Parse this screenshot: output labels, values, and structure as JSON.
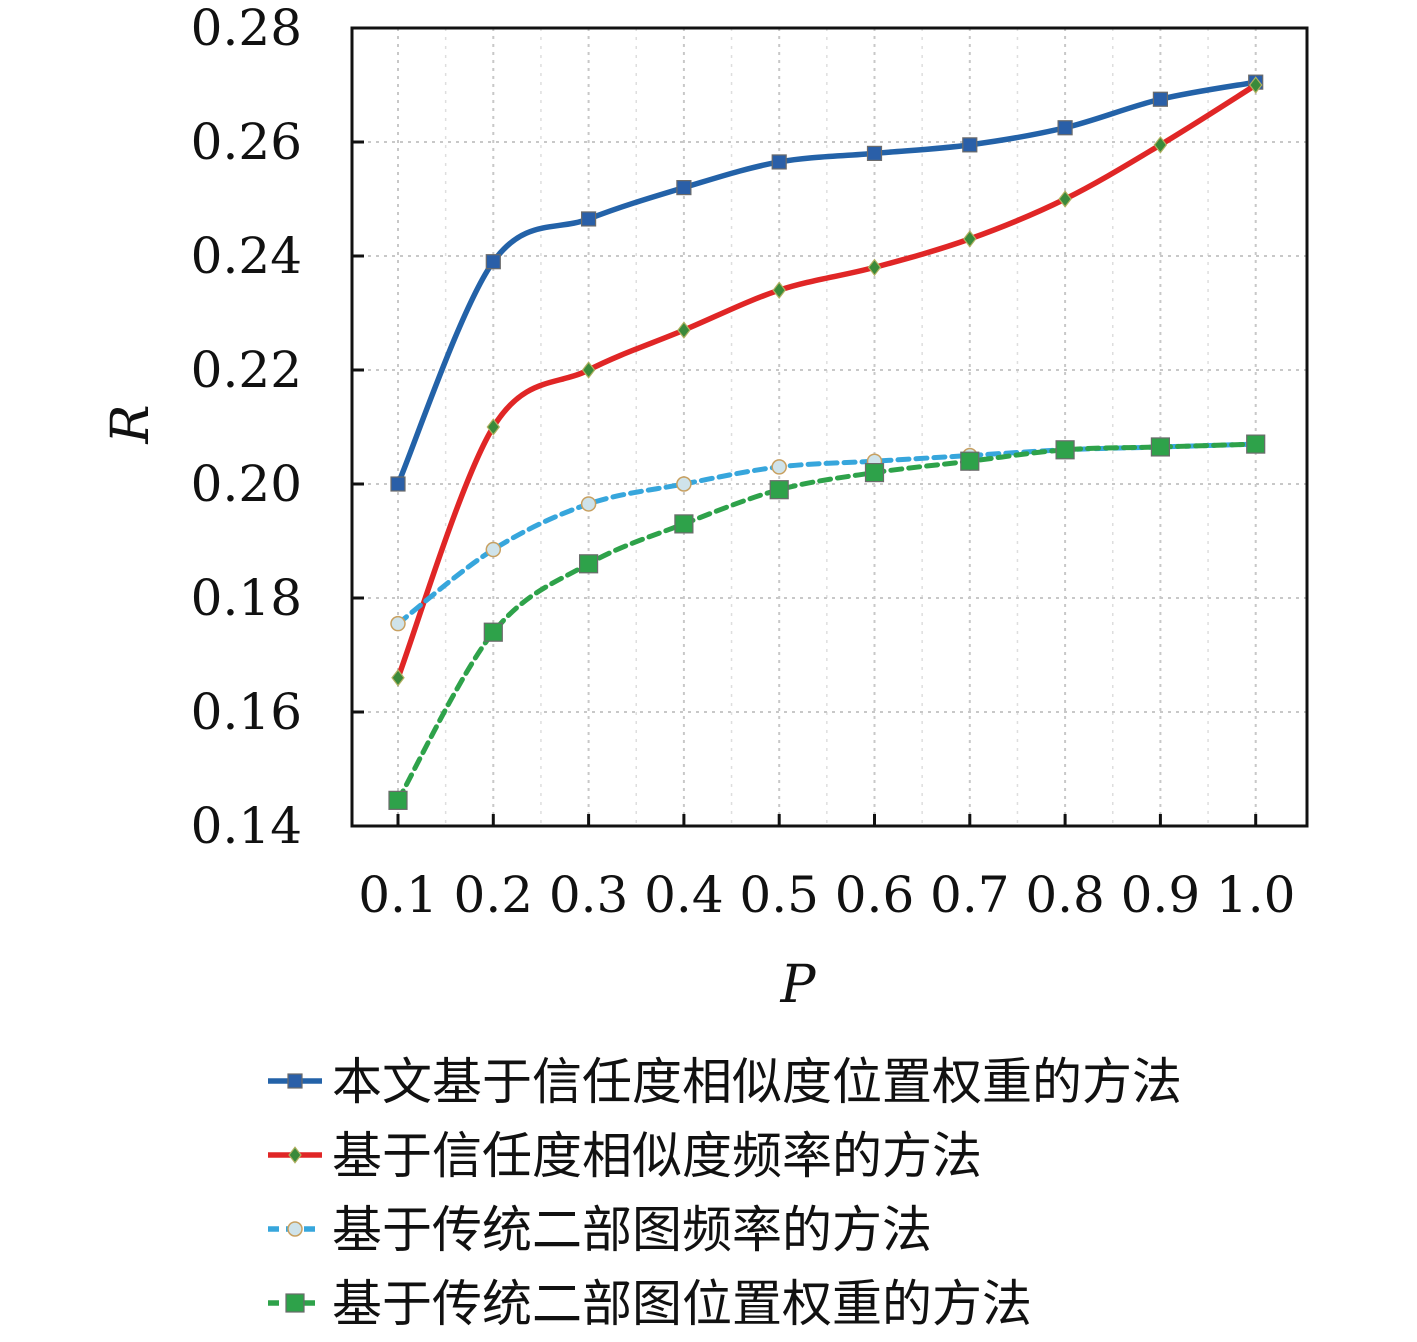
{
  "chart_data": {
    "type": "line",
    "title": "",
    "xlabel": "P",
    "ylabel": "R",
    "x": [
      0.1,
      0.2,
      0.3,
      0.4,
      0.5,
      0.6,
      0.7,
      0.8,
      0.9,
      1.0
    ],
    "x_tick_labels": [
      "0.1",
      "0.2",
      "0.3",
      "0.4",
      "0.5",
      "0.6",
      "0.7",
      "0.8",
      "0.9",
      "1.0"
    ],
    "ylim": [
      0.14,
      0.28
    ],
    "y_ticks": [
      0.14,
      0.16,
      0.18,
      0.2,
      0.22,
      0.24,
      0.26,
      0.28
    ],
    "y_tick_labels": [
      "0.14",
      "0.16",
      "0.18",
      "0.20",
      "0.22",
      "0.24",
      "0.26",
      "0.28"
    ],
    "grid": true,
    "legend_position": "bottom",
    "series": [
      {
        "name": "本文基于信任度相似度位置权重的方法",
        "values": [
          0.2,
          0.239,
          0.2465,
          0.252,
          0.2565,
          0.258,
          0.2595,
          0.2625,
          0.2675,
          0.2705
        ],
        "color": "#2362a8",
        "style": "solid",
        "marker": "square"
      },
      {
        "name": "基于信任度相似度频率的方法",
        "values": [
          0.166,
          0.21,
          0.22,
          0.227,
          0.234,
          0.238,
          0.243,
          0.25,
          0.2595,
          0.27
        ],
        "color": "#e02626",
        "style": "solid",
        "marker": "diamond"
      },
      {
        "name": "基于传统二部图频率的方法",
        "values": [
          0.1755,
          0.1885,
          0.1965,
          0.2,
          0.203,
          0.204,
          0.205,
          0.206,
          0.2065,
          0.207
        ],
        "color": "#37a6dc",
        "style": "dashed",
        "marker": "circle"
      },
      {
        "name": "基于传统二部图位置权重的方法",
        "values": [
          0.1445,
          0.174,
          0.186,
          0.193,
          0.199,
          0.202,
          0.204,
          0.206,
          0.2065,
          0.207
        ],
        "color": "#2ea24a",
        "style": "dashed",
        "marker": "square"
      }
    ]
  }
}
